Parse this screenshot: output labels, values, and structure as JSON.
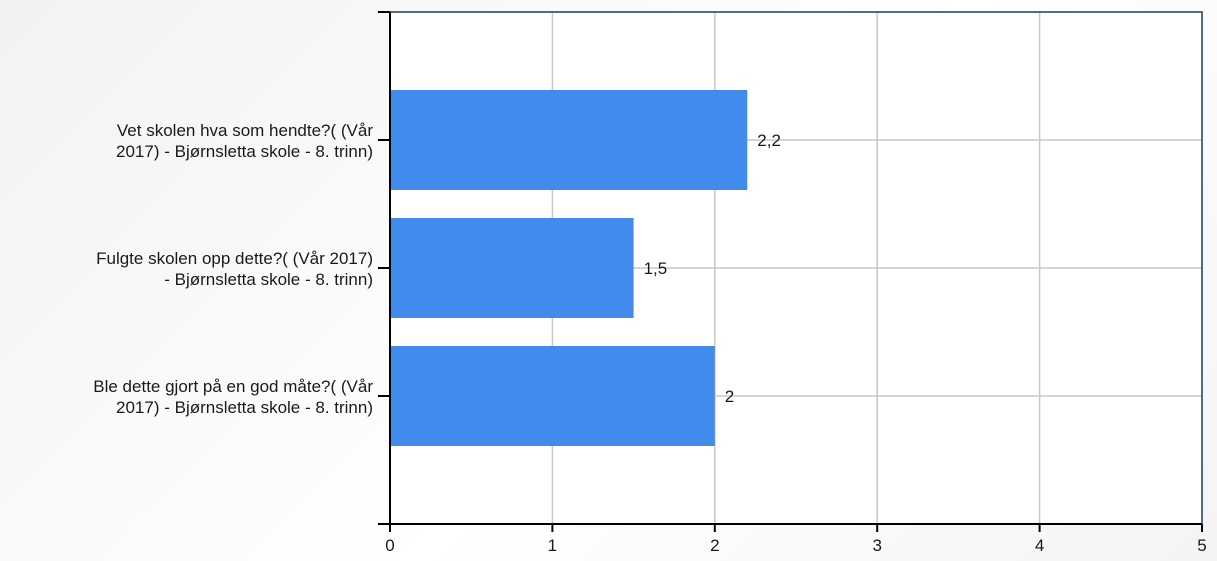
{
  "chart_data": {
    "type": "bar",
    "orientation": "horizontal",
    "categories": [
      [
        "Vet skolen hva som hendte?( (Vår",
        "2017) - Bjørnsletta skole - 8. trinn)"
      ],
      [
        "Fulgte skolen opp dette?( (Vår 2017)",
        "- Bjørnsletta skole - 8. trinn)"
      ],
      [
        "Ble dette gjort på en god måte?( (Vår",
        "2017) - Bjørnsletta skole - 8. trinn)"
      ]
    ],
    "values": [
      2.2,
      1.5,
      2
    ],
    "data_labels": [
      "2,2",
      "1,5",
      "2"
    ],
    "xlim": [
      0,
      5
    ],
    "x_ticks": [
      0,
      1,
      2,
      3,
      4,
      5
    ],
    "x_tick_labels": [
      "0",
      "1",
      "2",
      "3",
      "4",
      "5"
    ],
    "grid": true,
    "legend": "none",
    "colors": {
      "bar": "#418bec",
      "grid": "#c8c8c8",
      "plot_border": "#1f3864",
      "axis": "#000000"
    }
  }
}
